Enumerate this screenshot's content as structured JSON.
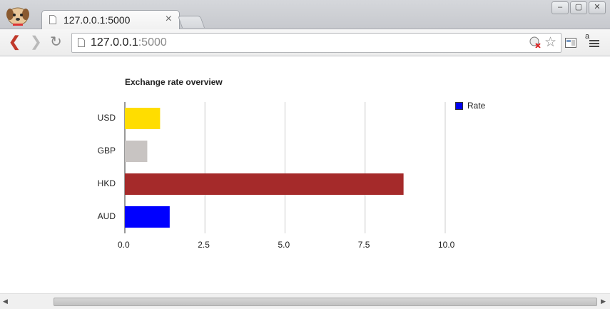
{
  "browser": {
    "tab_title": "127.0.0.1:5000",
    "tab_close": "×",
    "url_host": "127.0.0.1",
    "url_port": ":5000",
    "window_buttons": [
      "–",
      "▢",
      "✕"
    ],
    "translate_glyph": "a",
    "icons": [
      "chrome-logo-icon",
      "page-icon",
      "back-icon",
      "forward-icon",
      "reload-icon",
      "blocked-content-icon",
      "star-icon",
      "extension-icon",
      "menu-icon"
    ]
  },
  "chart_data": {
    "type": "bar",
    "orientation": "horizontal",
    "title": "Exchange rate overview",
    "categories": [
      "USD",
      "GBP",
      "HKD",
      "AUD"
    ],
    "series": [
      {
        "name": "Rate",
        "values": [
          1.1,
          0.7,
          8.7,
          1.4
        ]
      }
    ],
    "bar_colors": [
      "#ffdd00",
      "#c8c4c2",
      "#a52a2a",
      "#0000ff"
    ],
    "legend_color": "#0000ee",
    "xlim": [
      0,
      10
    ],
    "xticks": [
      "0.0",
      "2.5",
      "5.0",
      "7.5",
      "10.0"
    ],
    "grid": true,
    "legend_position": "right"
  }
}
